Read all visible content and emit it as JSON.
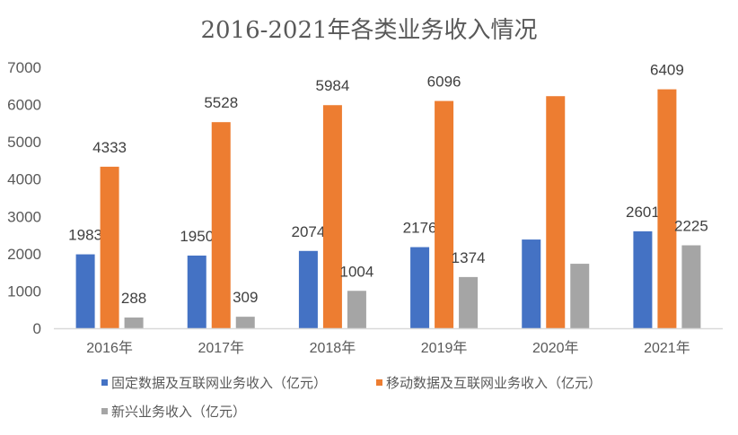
{
  "chart_data": {
    "type": "bar",
    "title": "2016-2021年各类业务收入情况",
    "xlabel": "",
    "ylabel": "",
    "ylim": [
      0,
      7000
    ],
    "yticks": [
      0,
      1000,
      2000,
      3000,
      4000,
      5000,
      6000,
      7000
    ],
    "grid": false,
    "legend_position": "bottom",
    "categories": [
      "2016年",
      "2017年",
      "2018年",
      "2019年",
      "2020年",
      "2021年"
    ],
    "series": [
      {
        "name": "固定数据及互联网业务收入（亿元）",
        "color": "#4472C4",
        "values": [
          1983,
          1950,
          2074,
          2176,
          2380,
          2601
        ],
        "labels": [
          "1983",
          "1950",
          "2074",
          "2176",
          null,
          "2601"
        ]
      },
      {
        "name": "移动数据及互联网业务收入（亿元）",
        "color": "#ED7D31",
        "values": [
          4333,
          5528,
          5984,
          6096,
          6225,
          6409
        ],
        "labels": [
          "4333",
          "5528",
          "5984",
          "6096",
          null,
          "6409"
        ]
      },
      {
        "name": "新兴业务收入（亿元）",
        "color": "#A5A5A5",
        "values": [
          288,
          309,
          1004,
          1374,
          1730,
          2225
        ],
        "labels": [
          "288",
          "309",
          "1004",
          "1374",
          null,
          "2225"
        ]
      }
    ]
  }
}
